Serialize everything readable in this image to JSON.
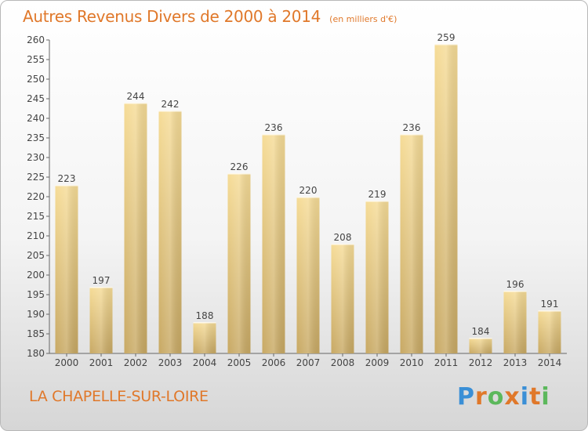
{
  "chart_data": {
    "type": "bar",
    "title": "Autres Revenus Divers de 2000 à 2014",
    "subtitle": "(en milliers d'€)",
    "categories": [
      "2000",
      "2001",
      "2002",
      "2003",
      "2004",
      "2005",
      "2006",
      "2007",
      "2008",
      "2009",
      "2010",
      "2011",
      "2012",
      "2013",
      "2014"
    ],
    "values": [
      223,
      197,
      244,
      242,
      188,
      226,
      236,
      220,
      208,
      219,
      236,
      259,
      184,
      196,
      191
    ],
    "ylim": [
      180,
      260
    ],
    "yticks": [
      180,
      185,
      190,
      195,
      200,
      205,
      210,
      215,
      220,
      225,
      230,
      235,
      240,
      245,
      250,
      255,
      260
    ],
    "grid": false,
    "data_labels": true,
    "bar_color": "#e6c878",
    "title_color": "#e0782a"
  },
  "footer": {
    "place": "LA CHAPELLE-SUR-LOIRE",
    "logo": "Proxiti",
    "logo_colors": [
      "#3a8fd6",
      "#e0782a",
      "#5cb85c",
      "#e0782a",
      "#3a8fd6",
      "#e0782a",
      "#5cb85c"
    ]
  }
}
